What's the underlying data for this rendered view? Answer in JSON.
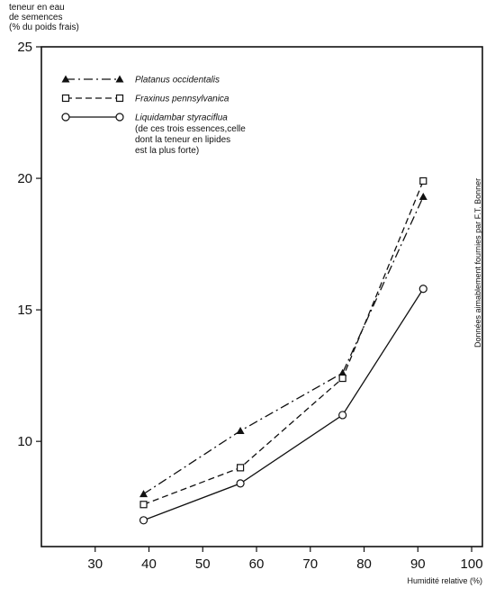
{
  "chart_data": {
    "type": "line",
    "ylabel_lines": [
      "teneur en eau",
      "de semences",
      "(% du poids frais)"
    ],
    "xlabel": "Humidité relative (%)",
    "credit": "Données aimablement fournies par F.T. Bonner",
    "xlim": [
      20,
      102
    ],
    "ylim": [
      6,
      25
    ],
    "xticks": [
      30,
      40,
      50,
      60,
      70,
      80,
      90,
      100
    ],
    "yticks": [
      10,
      15,
      20,
      25
    ],
    "grid": false,
    "legend_position": "top-left",
    "legend_note_lines": [
      "(de ces trois essences,celle",
      "dont la teneur en lipides",
      "est la plus forte)"
    ],
    "series": [
      {
        "name": "Platanus occidentalis",
        "marker": "triangle-filled",
        "dash": "dash-dot",
        "x": [
          39,
          57,
          76,
          91
        ],
        "y": [
          8.0,
          10.4,
          12.6,
          19.3
        ]
      },
      {
        "name": "Fraxinus pennsylvanica",
        "marker": "square-open",
        "dash": "dashed",
        "x": [
          39,
          57,
          76,
          91
        ],
        "y": [
          7.6,
          9.0,
          12.4,
          19.9
        ]
      },
      {
        "name": "Liquidambar styraciflua",
        "marker": "circle-open",
        "dash": "solid",
        "x": [
          39,
          57,
          76,
          91
        ],
        "y": [
          7.0,
          8.4,
          11.0,
          15.8
        ]
      }
    ]
  }
}
